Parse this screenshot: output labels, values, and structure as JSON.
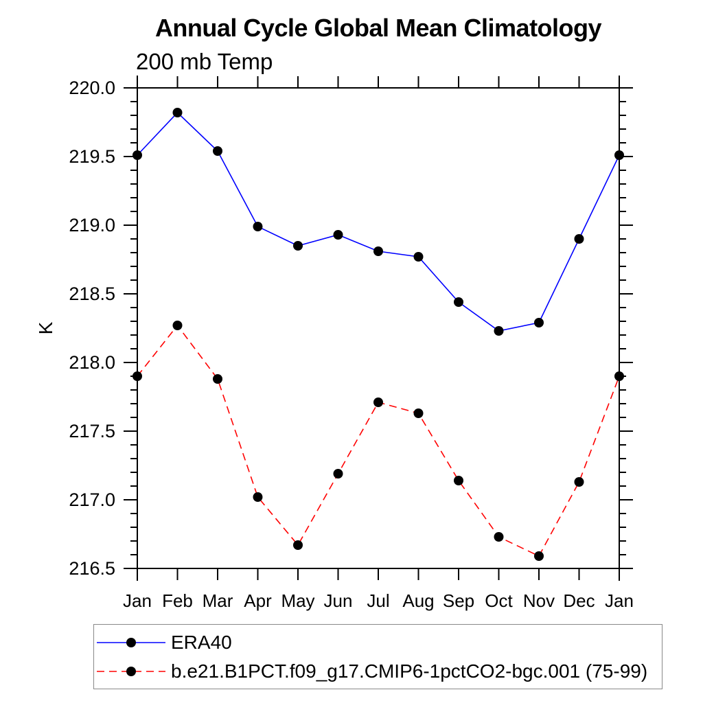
{
  "chart_data": {
    "type": "line",
    "title": "Annual Cycle Global Mean Climatology",
    "subtitle": "200 mb Temp",
    "xlabel": "",
    "ylabel": "K",
    "categories": [
      "Jan",
      "Feb",
      "Mar",
      "Apr",
      "May",
      "Jun",
      "Jul",
      "Aug",
      "Sep",
      "Oct",
      "Nov",
      "Dec",
      "Jan"
    ],
    "ylim": [
      216.5,
      220.0
    ],
    "y_major_ticks": [
      "216.5",
      "217.0",
      "217.5",
      "218.0",
      "218.5",
      "219.0",
      "219.5",
      "220.0"
    ],
    "y_minor_step": 0.1,
    "grid": false,
    "tick_direction": "outward",
    "axis_color": "#000000",
    "legend_position": "bottom-left",
    "legend_border_color": "#888888",
    "series": [
      {
        "name": "ERA40",
        "color": "#0000ff",
        "line_style": "solid",
        "marker": "filled-circle",
        "marker_color": "#000000",
        "values": [
          219.51,
          219.82,
          219.54,
          218.99,
          218.85,
          218.93,
          218.81,
          218.77,
          218.44,
          218.23,
          218.29,
          218.9,
          219.51
        ]
      },
      {
        "name": "b.e21.B1PCT.f09_g17.CMIP6-1pctCO2-bgc.001 (75-99)",
        "color": "#ff0000",
        "line_style": "dashed",
        "marker": "filled-circle",
        "marker_color": "#000000",
        "values": [
          217.9,
          218.27,
          217.88,
          217.02,
          216.67,
          217.19,
          217.71,
          217.63,
          217.14,
          216.73,
          216.59,
          217.13,
          217.9
        ]
      }
    ]
  }
}
